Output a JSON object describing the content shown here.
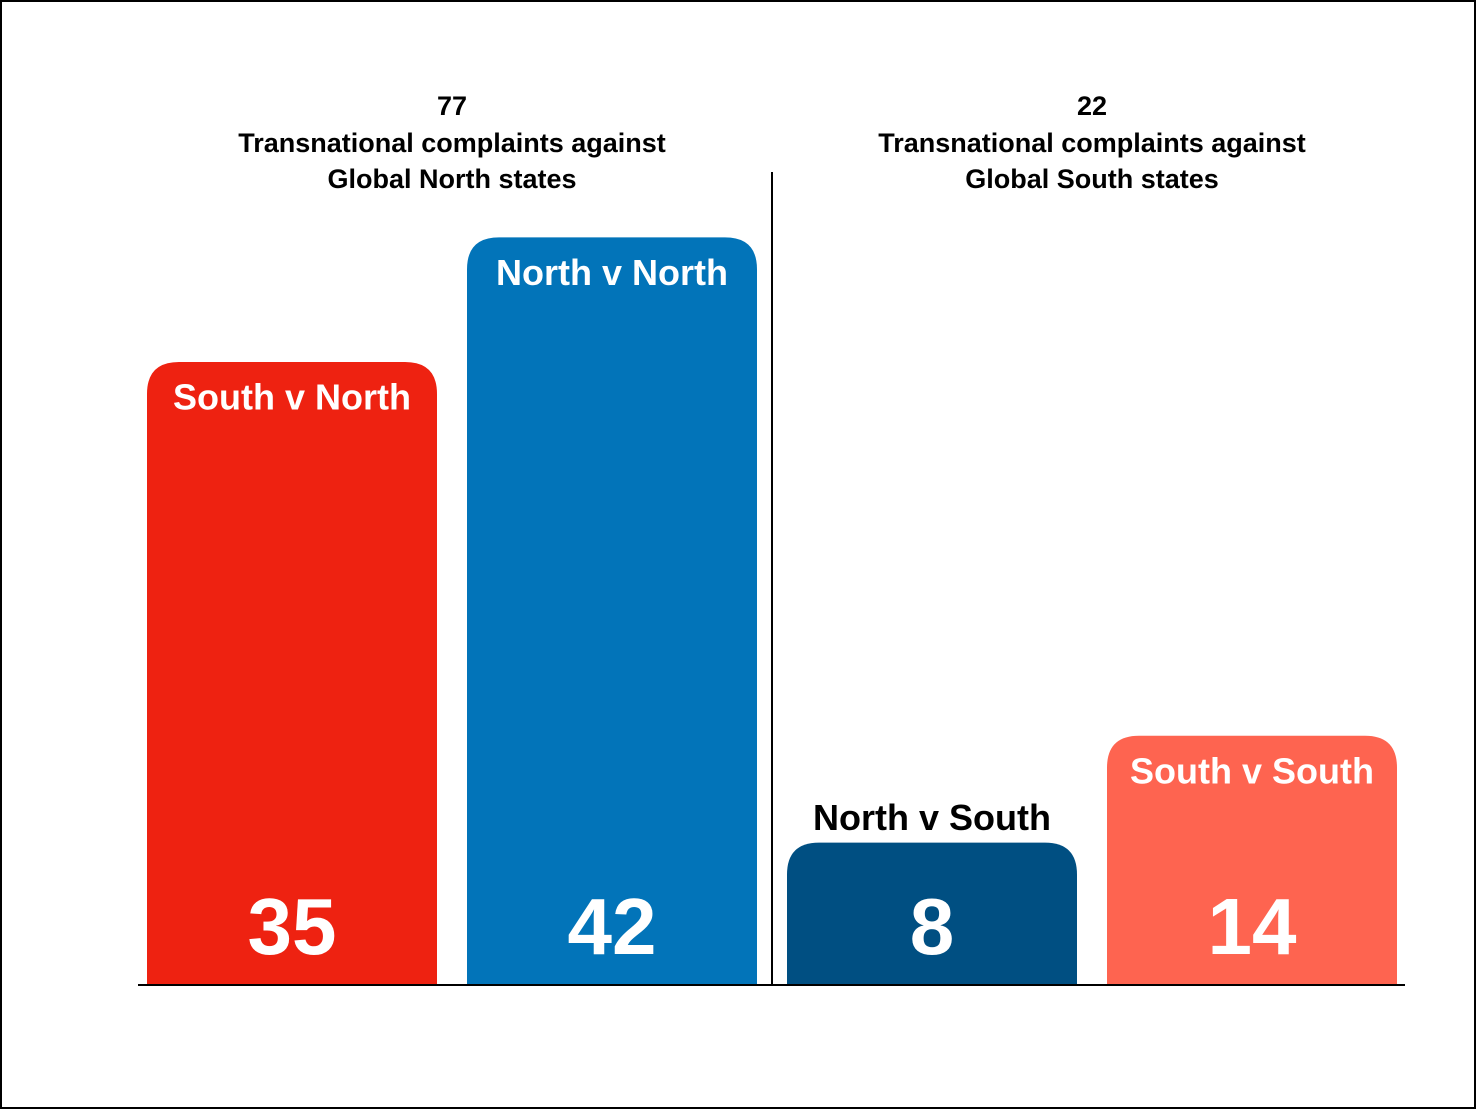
{
  "chart_data": {
    "type": "bar",
    "groups": [
      {
        "total": 77,
        "title": [
          "Transnational complaints against",
          "Global North states"
        ]
      },
      {
        "total": 22,
        "title": [
          "Transnational complaints against",
          "Global South states"
        ]
      }
    ],
    "categories": [
      "South v North",
      "North v North",
      "North v South",
      "South v South"
    ],
    "values": [
      35,
      42,
      8,
      14
    ],
    "colors": [
      "#ee2211",
      "#0274b9",
      "#004f82",
      "#fe6450"
    ],
    "ylim": [
      0,
      50
    ]
  }
}
